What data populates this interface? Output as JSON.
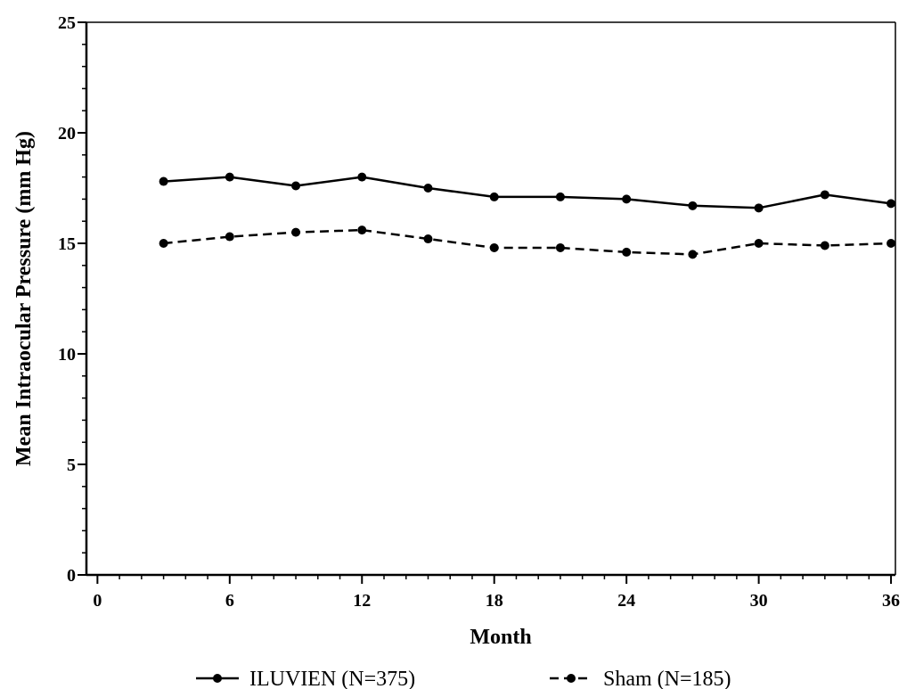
{
  "chart_data": {
    "type": "line",
    "title": "",
    "xlabel": "Month",
    "ylabel": "Mean Intraocular Pressure (mm Hg)",
    "xlim": [
      -0.5,
      36.2
    ],
    "ylim": [
      0,
      25
    ],
    "x_ticks": [
      0,
      6,
      12,
      18,
      24,
      30,
      36
    ],
    "y_ticks": [
      0,
      5,
      10,
      15,
      20,
      25
    ],
    "x_minor_step": 1,
    "y_minor_step": 1,
    "grid": false,
    "legend_position": "bottom",
    "x": [
      3,
      6,
      9,
      12,
      15,
      18,
      21,
      24,
      27,
      30,
      33,
      36
    ],
    "series": [
      {
        "name": "ILUVIEN (N=375)",
        "values": [
          17.8,
          18.0,
          17.6,
          18.0,
          17.5,
          17.1,
          17.1,
          17.0,
          16.7,
          16.6,
          17.2,
          16.8
        ],
        "line_style": "solid",
        "color": "#000000"
      },
      {
        "name": "Sham (N=185)",
        "values": [
          15.0,
          15.3,
          15.5,
          15.6,
          15.2,
          14.8,
          14.8,
          14.6,
          14.5,
          15.0,
          14.9,
          15.0
        ],
        "line_style": "dashed",
        "color": "#000000"
      }
    ]
  }
}
